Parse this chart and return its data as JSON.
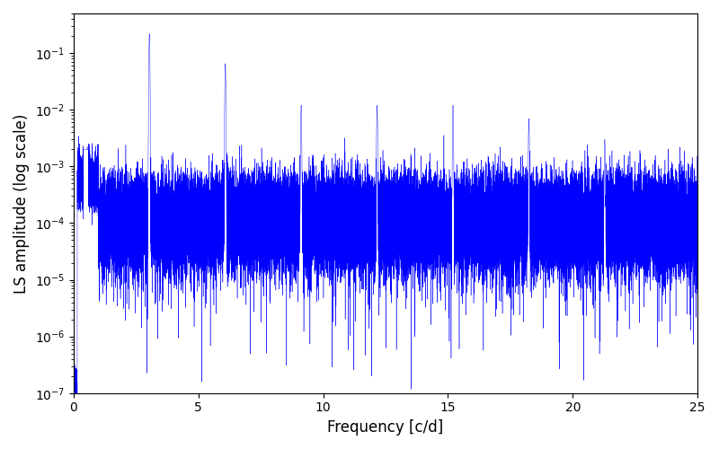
{
  "xlabel": "Frequency [c/d]",
  "ylabel": "LS amplitude (log scale)",
  "xlim": [
    0,
    25
  ],
  "ylim_log": [
    1e-07,
    0.5
  ],
  "line_color": "#0000ff",
  "background_color": "#ffffff",
  "figsize": [
    8.0,
    5.0
  ],
  "dpi": 100,
  "freq_max": 25.0,
  "n_points": 50000,
  "seed": 12345,
  "base_freq": 3.04,
  "harmonics": [
    1,
    2,
    3,
    4,
    5,
    6,
    7
  ],
  "harmonic_amps": [
    0.22,
    0.065,
    0.012,
    0.012,
    0.012,
    0.007,
    0.003
  ],
  "noise_floor": 0.0001,
  "noise_sigma_log": 0.9
}
